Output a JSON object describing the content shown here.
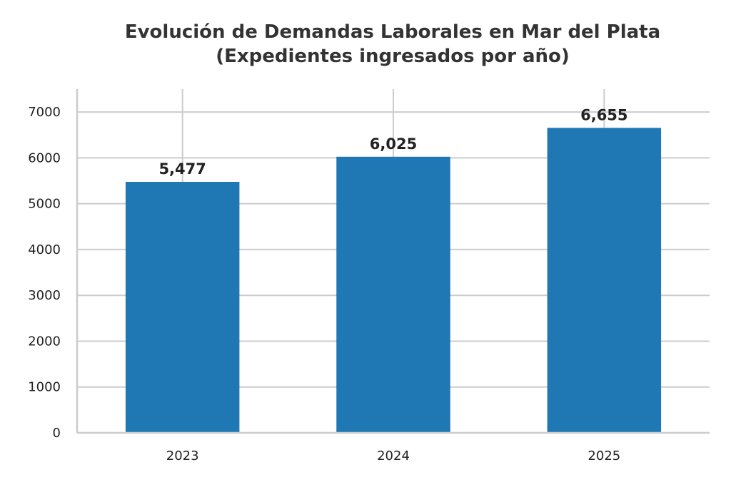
{
  "chart_data": {
    "type": "bar",
    "title_line1": "Evolución de Demandas Laborales en Mar del Plata",
    "title_line2": "(Expedientes ingresados por año)",
    "xlabel": "",
    "ylabel": "",
    "categories": [
      "2023",
      "2024",
      "2025"
    ],
    "values": [
      5477,
      6025,
      6655
    ],
    "value_labels": [
      "5,477",
      "6,025",
      "6,655"
    ],
    "yticks": [
      0,
      1000,
      2000,
      3000,
      4000,
      5000,
      6000,
      7000
    ],
    "ylim": [
      0,
      7500
    ],
    "grid": true,
    "bar_color": "#1f77b4",
    "grid_color": "#cccccc"
  }
}
